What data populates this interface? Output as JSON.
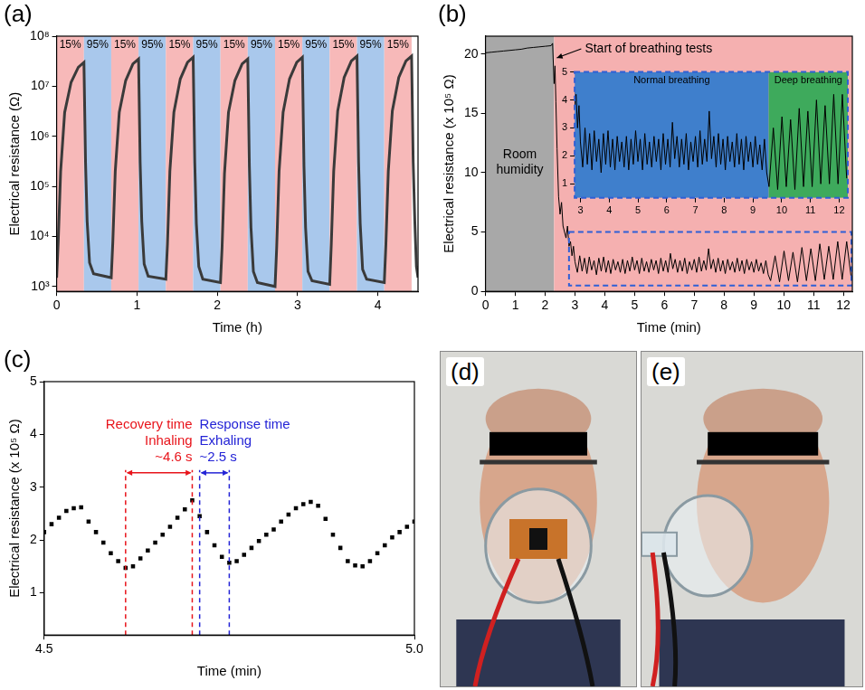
{
  "chart_data": [
    {
      "panel": "(a)",
      "type": "line",
      "color": "#3a3a3a",
      "xlabel": "Time (h)",
      "ylabel": "Electrical resistance (Ω)",
      "log": "y",
      "grid": false,
      "xlim": [
        0,
        4.5
      ],
      "xticks": [
        0,
        1,
        2,
        3,
        4
      ],
      "ylim": [
        800,
        100000000
      ],
      "yticks": [
        {
          "value": 1000,
          "label": "10³"
        },
        {
          "value": 10000,
          "label": "10⁴"
        },
        {
          "value": 100000,
          "label": "10⁵"
        },
        {
          "value": 1000000,
          "label": "10⁶"
        },
        {
          "value": 10000000,
          "label": "10⁷"
        },
        {
          "value": 100000000,
          "label": "10⁸"
        }
      ],
      "regions": [
        {
          "start": 0,
          "end": 0.34,
          "label": "15%",
          "color": "#f7b9b9"
        },
        {
          "start": 0.34,
          "end": 0.68,
          "label": "95%",
          "color": "#a9c8ec"
        },
        {
          "start": 0.68,
          "end": 1.02,
          "label": "15%",
          "color": "#f7b9b9"
        },
        {
          "start": 1.02,
          "end": 1.36,
          "label": "95%",
          "color": "#a9c8ec"
        },
        {
          "start": 1.36,
          "end": 1.7,
          "label": "15%",
          "color": "#f7b9b9"
        },
        {
          "start": 1.7,
          "end": 2.04,
          "label": "95%",
          "color": "#a9c8ec"
        },
        {
          "start": 2.04,
          "end": 2.38,
          "label": "15%",
          "color": "#f7b9b9"
        },
        {
          "start": 2.38,
          "end": 2.72,
          "label": "95%",
          "color": "#a9c8ec"
        },
        {
          "start": 2.72,
          "end": 3.06,
          "label": "15%",
          "color": "#f7b9b9"
        },
        {
          "start": 3.06,
          "end": 3.4,
          "label": "95%",
          "color": "#a9c8ec"
        },
        {
          "start": 3.4,
          "end": 3.74,
          "label": "15%",
          "color": "#f7b9b9"
        },
        {
          "start": 3.74,
          "end": 4.08,
          "label": "95%",
          "color": "#a9c8ec"
        },
        {
          "start": 4.08,
          "end": 4.42,
          "label": "15%",
          "color": "#f7b9b9"
        }
      ],
      "x": [
        0,
        0.02,
        0.05,
        0.1,
        0.18,
        0.27,
        0.34,
        0.36,
        0.38,
        0.41,
        0.46,
        0.68,
        0.7,
        0.73,
        0.78,
        0.86,
        0.95,
        1.02,
        1.04,
        1.06,
        1.09,
        1.14,
        1.36,
        1.38,
        1.41,
        1.46,
        1.54,
        1.63,
        1.7,
        1.72,
        1.74,
        1.77,
        1.82,
        2.04,
        2.06,
        2.09,
        2.14,
        2.22,
        2.31,
        2.38,
        2.4,
        2.42,
        2.45,
        2.5,
        2.72,
        2.74,
        2.77,
        2.82,
        2.9,
        2.99,
        3.06,
        3.08,
        3.1,
        3.13,
        3.18,
        3.4,
        3.42,
        3.45,
        3.5,
        3.58,
        3.67,
        3.74,
        3.76,
        3.78,
        3.81,
        3.86,
        4.08,
        4.1,
        4.13,
        4.18,
        4.26,
        4.35,
        4.42,
        4.44,
        4.46,
        4.48,
        4.5
      ],
      "values": [
        1500,
        8000,
        200000,
        3000000,
        12000000,
        24000000,
        30000000,
        300000,
        20000,
        3000,
        1800,
        1500,
        8000,
        200000,
        3000000,
        13000000,
        28000000,
        35000000,
        300000,
        20000,
        2800,
        1600,
        1400,
        7000,
        200000,
        3000000,
        14000000,
        30000000,
        38000000,
        300000,
        18000,
        2500,
        1400,
        1200,
        6000,
        180000,
        3000000,
        13000000,
        28000000,
        35000000,
        250000,
        15000,
        2000,
        1200,
        1000,
        6000,
        200000,
        3000000,
        14000000,
        30000000,
        38000000,
        250000,
        15000,
        2000,
        1300,
        1100,
        7000,
        200000,
        3200000,
        15000000,
        32000000,
        40000000,
        300000,
        18000,
        2200,
        1400,
        1200,
        7000,
        200000,
        3200000,
        15000000,
        32000000,
        40000000,
        300000,
        20000,
        2500,
        1500
      ]
    },
    {
      "panel": "(b)",
      "type": "line",
      "color": "#000000",
      "xlabel": "Time (min)",
      "ylabel": "Electrical resistance (x 10⁵ Ω)",
      "grid": false,
      "xlim": [
        0,
        12.3
      ],
      "xticks": [
        0,
        1,
        2,
        3,
        4,
        5,
        6,
        7,
        8,
        9,
        10,
        11,
        12
      ],
      "ylim": [
        0,
        21.5
      ],
      "yticks": [
        0,
        5,
        10,
        15,
        20
      ],
      "regions": [
        {
          "start": 0,
          "end": 2.3,
          "label": "Room humidity",
          "color": "#a8a8a8"
        },
        {
          "start": 2.3,
          "end": 12.3,
          "color": "#f5b0b0"
        }
      ],
      "annotations": [
        {
          "text": "Start of breathing tests",
          "x": 2.3
        }
      ],
      "x": [
        0,
        0.2,
        0.4,
        0.6,
        0.8,
        1,
        1.2,
        1.4,
        1.6,
        1.8,
        2,
        2.2,
        2.25,
        2.3,
        2.33,
        2.36,
        2.4,
        2.45,
        2.5,
        2.55,
        2.6,
        2.7,
        2.75,
        2.8,
        2.85,
        2.9,
        2.95,
        3,
        3.08,
        3.16,
        3.24,
        3.32,
        3.4,
        3.48,
        3.56,
        3.64,
        3.72,
        3.8,
        3.88,
        3.96,
        4.04,
        4.12,
        4.2,
        4.28,
        4.36,
        4.44,
        4.52,
        4.6,
        4.68,
        4.76,
        4.84,
        4.92,
        5,
        5.08,
        5.16,
        5.24,
        5.32,
        5.4,
        5.48,
        5.56,
        5.64,
        5.72,
        5.8,
        5.88,
        5.96,
        6.04,
        6.12,
        6.2,
        6.28,
        6.36,
        6.44,
        6.52,
        6.6,
        6.68,
        6.76,
        6.84,
        6.92,
        7,
        7.08,
        7.16,
        7.24,
        7.32,
        7.4,
        7.48,
        7.56,
        7.64,
        7.72,
        7.8,
        7.88,
        7.96,
        8.04,
        8.12,
        8.2,
        8.28,
        8.36,
        8.44,
        8.52,
        8.6,
        8.68,
        8.76,
        8.84,
        8.92,
        9,
        9.08,
        9.16,
        9.24,
        9.32,
        9.4,
        9.48,
        9.56,
        9.71,
        9.86,
        10.01,
        10.16,
        10.31,
        10.46,
        10.61,
        10.76,
        10.91,
        11.06,
        11.21,
        11.36,
        11.51,
        11.66,
        11.81,
        11.96,
        12.11,
        12.26
      ],
      "values": [
        20.1,
        20.15,
        20.2,
        20.25,
        20.3,
        20.35,
        20.4,
        20.5,
        20.55,
        20.6,
        20.65,
        20.7,
        20.9,
        17.5,
        19,
        16,
        12,
        8,
        6.5,
        7.5,
        5.5,
        4.5,
        5.5,
        3.8,
        4.2,
        3,
        3.8,
        2.5,
        1.6,
        3,
        1.7,
        2.8,
        1.5,
        2.9,
        1.8,
        2.6,
        1.4,
        2.8,
        1.7,
        2.9,
        1.6,
        2.6,
        1.5,
        2.7,
        1.8,
        2.5,
        1.6,
        2.7,
        1.5,
        2.6,
        1.7,
        2.9,
        1.8,
        2.6,
        1.5,
        2.8,
        1.7,
        2.5,
        1.6,
        2.7,
        1.8,
        2.6,
        1.5,
        2.8,
        1.7,
        2.6,
        1.6,
        3.2,
        1.9,
        2.7,
        1.6,
        2.6,
        1.7,
        2.8,
        1.5,
        2.5,
        1.8,
        2.7,
        1.6,
        2.9,
        1.7,
        2.6,
        1.8,
        3.6,
        1.9,
        2.7,
        1.6,
        2.8,
        1.7,
        2.6,
        1.5,
        2.7,
        1.8,
        2.5,
        1.6,
        2.8,
        1.7,
        2.6,
        1.5,
        2.7,
        1.8,
        2.5,
        1.6,
        2.7,
        1.7,
        2.4,
        1.5,
        2.6,
        1.4,
        0.9,
        3,
        0.8,
        3.4,
        0.9,
        3.3,
        0.8,
        3.7,
        0.9,
        3.6,
        0.9,
        4,
        1,
        3.8,
        1,
        4.2,
        1,
        4.2,
        1.2
      ],
      "inset": {
        "color": "#2f5fd6",
        "xlim": [
          2.8,
          12.3
        ],
        "xticks": [
          3,
          4,
          5,
          6,
          7,
          8,
          9,
          10,
          11,
          12
        ],
        "ylim": [
          0.5,
          5
        ],
        "yticks": [
          1,
          2,
          3,
          4,
          5
        ],
        "regions": [
          {
            "start": 2.8,
            "end": 9.55,
            "label": "Normal breathing",
            "color": "#3f7fcc"
          },
          {
            "start": 9.55,
            "end": 12.3,
            "label": "Deep breathing",
            "color": "#3eaa5c"
          }
        ]
      }
    },
    {
      "panel": "(c)",
      "type": "scatter",
      "marker": "square",
      "color": "#000000",
      "xlabel": "Time (min)",
      "ylabel": "Electrical resistance (x 10⁵ Ω)",
      "grid": false,
      "xlim": [
        4.5,
        5
      ],
      "xticks": [
        4.5,
        {
          "value": 5,
          "label": "5.0"
        }
      ],
      "ylim": [
        0.2,
        5
      ],
      "yticks": [
        1,
        2,
        3,
        4,
        5
      ],
      "annotations": [
        {
          "text": [
            "Recovery time",
            "Inhaling",
            "~4.6 s"
          ],
          "start": 4.61,
          "end": 4.7,
          "color": "#e8141b"
        },
        {
          "text": [
            "Response time",
            "Exhaling",
            "~2.5 s"
          ],
          "start": 4.71,
          "end": 4.75,
          "color": "#2323d6"
        }
      ],
      "x": [
        4.5,
        4.51,
        4.52,
        4.53,
        4.54,
        4.55,
        4.56,
        4.57,
        4.58,
        4.59,
        4.6,
        4.61,
        4.62,
        4.63,
        4.64,
        4.65,
        4.66,
        4.67,
        4.68,
        4.69,
        4.7,
        4.71,
        4.72,
        4.73,
        4.74,
        4.75,
        4.76,
        4.77,
        4.78,
        4.79,
        4.8,
        4.81,
        4.82,
        4.83,
        4.84,
        4.85,
        4.86,
        4.87,
        4.88,
        4.89,
        4.9,
        4.91,
        4.92,
        4.93,
        4.94,
        4.95,
        4.96,
        4.97,
        4.98,
        4.99,
        5
      ],
      "values": [
        2.15,
        2.3,
        2.42,
        2.55,
        2.6,
        2.62,
        2.35,
        2.15,
        1.95,
        1.75,
        1.6,
        1.47,
        1.5,
        1.65,
        1.8,
        1.95,
        2.1,
        2.25,
        2.42,
        2.58,
        2.75,
        2.45,
        2.15,
        1.9,
        1.68,
        1.57,
        1.6,
        1.72,
        1.85,
        1.98,
        2.1,
        2.2,
        2.35,
        2.48,
        2.6,
        2.68,
        2.72,
        2.65,
        2.4,
        2.1,
        1.85,
        1.6,
        1.52,
        1.5,
        1.6,
        1.75,
        1.9,
        2.05,
        2.15,
        2.25,
        2.35
      ]
    }
  ],
  "photos": [
    {
      "panel": "(d)"
    },
    {
      "panel": "(e)"
    }
  ]
}
